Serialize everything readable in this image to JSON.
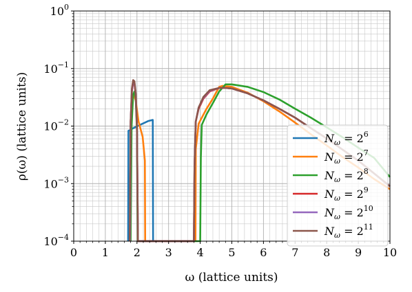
{
  "chart_data": {
    "type": "line",
    "title": "",
    "xlabel": "ω (lattice units)",
    "ylabel": "ρ(ω) (lattice units)",
    "xlim": [
      0,
      10
    ],
    "ylim": [
      0.0001,
      1
    ],
    "yscale": "log",
    "grid": true,
    "legend_position": "lower-right",
    "x_ticks": [
      {
        "value": 0,
        "label": "0"
      },
      {
        "value": 1,
        "label": "1"
      },
      {
        "value": 2,
        "label": "2"
      },
      {
        "value": 3,
        "label": "3"
      },
      {
        "value": 4,
        "label": "4"
      },
      {
        "value": 5,
        "label": "5"
      },
      {
        "value": 6,
        "label": "6"
      },
      {
        "value": 7,
        "label": "7"
      },
      {
        "value": 8,
        "label": "8"
      },
      {
        "value": 9,
        "label": "9"
      },
      {
        "value": 10,
        "label": "10"
      }
    ],
    "y_ticks": [
      {
        "value": 0.0001,
        "base": "10",
        "exp": "−4"
      },
      {
        "value": 0.001,
        "base": "10",
        "exp": "−3"
      },
      {
        "value": 0.01,
        "base": "10",
        "exp": "−2"
      },
      {
        "value": 0.1,
        "base": "10",
        "exp": "−1"
      },
      {
        "value": 1,
        "base": "10",
        "exp": "0"
      }
    ],
    "series": [
      {
        "name_base": "N",
        "name_sub": "ω",
        "name_rhs": " = 2",
        "name_exp": "6",
        "color": "#1f77b4",
        "points": [
          [
            1.72,
            0.0001
          ],
          [
            1.73,
            0.0083
          ],
          [
            1.78,
            0.0085
          ],
          [
            1.85,
            0.009
          ],
          [
            2.1,
            0.0105
          ],
          [
            2.35,
            0.0122
          ],
          [
            2.5,
            0.0128
          ],
          [
            2.51,
            0.0001
          ]
        ]
      },
      {
        "name_base": "N",
        "name_sub": "ω",
        "name_rhs": " = 2",
        "name_exp": "7",
        "color": "#ff7f0e",
        "points": [
          [
            1.78,
            0.0001
          ],
          [
            1.8,
            0.008
          ],
          [
            1.85,
            0.03
          ],
          [
            1.9,
            0.035
          ],
          [
            1.96,
            0.028
          ],
          [
            2.05,
            0.012
          ],
          [
            2.18,
            0.0065
          ],
          [
            2.25,
            0.0025
          ],
          [
            2.26,
            0.0001
          ],
          [
            3.85,
            0.0001
          ],
          [
            3.86,
            0.004
          ],
          [
            3.95,
            0.011
          ],
          [
            4.2,
            0.02
          ],
          [
            4.4,
            0.03
          ],
          [
            4.6,
            0.048
          ],
          [
            4.7,
            0.05
          ],
          [
            5.0,
            0.048
          ],
          [
            5.5,
            0.038
          ],
          [
            6.0,
            0.027
          ],
          [
            6.5,
            0.018
          ],
          [
            7.0,
            0.0115
          ],
          [
            7.5,
            0.0072
          ],
          [
            8.0,
            0.0046
          ],
          [
            8.5,
            0.0029
          ],
          [
            9.0,
            0.0019
          ],
          [
            9.5,
            0.0012
          ],
          [
            10.0,
            0.0008
          ]
        ]
      },
      {
        "name_base": "N",
        "name_sub": "ω",
        "name_rhs": " = 2",
        "name_exp": "8",
        "color": "#2ca02c",
        "points": [
          [
            1.8,
            0.0001
          ],
          [
            1.83,
            0.01
          ],
          [
            1.88,
            0.035
          ],
          [
            1.92,
            0.04
          ],
          [
            1.96,
            0.03
          ],
          [
            2.0,
            0.008
          ],
          [
            2.02,
            0.0001
          ],
          [
            4.0,
            0.0001
          ],
          [
            4.02,
            0.0028
          ],
          [
            4.05,
            0.0105
          ],
          [
            4.2,
            0.016
          ],
          [
            4.4,
            0.025
          ],
          [
            4.6,
            0.04
          ],
          [
            4.8,
            0.053
          ],
          [
            5.0,
            0.053
          ],
          [
            5.5,
            0.048
          ],
          [
            6.0,
            0.039
          ],
          [
            6.5,
            0.029
          ],
          [
            7.0,
            0.02
          ],
          [
            7.5,
            0.014
          ],
          [
            8.0,
            0.0095
          ],
          [
            8.5,
            0.0064
          ],
          [
            9.0,
            0.0042
          ],
          [
            9.5,
            0.0028
          ],
          [
            10.0,
            0.0013
          ]
        ]
      },
      {
        "name_base": "N",
        "name_sub": "ω",
        "name_rhs": " = 2",
        "name_exp": "9",
        "color": "#d62728",
        "points": [
          [
            1.78,
            0.0001
          ],
          [
            1.8,
            0.012
          ],
          [
            1.84,
            0.04
          ],
          [
            1.88,
            0.058
          ],
          [
            1.92,
            0.055
          ],
          [
            1.96,
            0.035
          ],
          [
            2.0,
            0.01
          ],
          [
            2.03,
            0.0001
          ],
          [
            3.8,
            0.0001
          ],
          [
            3.82,
            0.002
          ],
          [
            3.86,
            0.012
          ],
          [
            3.95,
            0.02
          ],
          [
            4.1,
            0.03
          ],
          [
            4.3,
            0.04
          ],
          [
            4.6,
            0.046
          ],
          [
            4.8,
            0.046
          ],
          [
            5.0,
            0.045
          ],
          [
            5.5,
            0.037
          ],
          [
            6.0,
            0.028
          ],
          [
            6.5,
            0.02
          ],
          [
            7.0,
            0.014
          ],
          [
            7.5,
            0.0092
          ],
          [
            8.0,
            0.0061
          ],
          [
            8.5,
            0.0039
          ],
          [
            9.0,
            0.0025
          ],
          [
            9.5,
            0.0015
          ],
          [
            10.0,
            0.0009
          ]
        ]
      },
      {
        "name_base": "N",
        "name_sub": "ω",
        "name_rhs": " = 2",
        "name_exp": "10",
        "color": "#9467bd",
        "points": [
          [
            1.78,
            0.0001
          ],
          [
            1.8,
            0.012
          ],
          [
            1.84,
            0.042
          ],
          [
            1.88,
            0.06
          ],
          [
            1.92,
            0.057
          ],
          [
            1.96,
            0.036
          ],
          [
            2.0,
            0.01
          ],
          [
            2.03,
            0.0001
          ],
          [
            3.8,
            0.0001
          ],
          [
            3.82,
            0.002
          ],
          [
            3.86,
            0.012
          ],
          [
            3.95,
            0.021
          ],
          [
            4.1,
            0.031
          ],
          [
            4.3,
            0.041
          ],
          [
            4.6,
            0.046
          ],
          [
            4.8,
            0.046
          ],
          [
            5.0,
            0.045
          ],
          [
            5.5,
            0.037
          ],
          [
            6.0,
            0.028
          ],
          [
            6.5,
            0.02
          ],
          [
            7.0,
            0.014
          ],
          [
            7.5,
            0.0092
          ],
          [
            8.0,
            0.0061
          ],
          [
            8.5,
            0.0039
          ],
          [
            9.0,
            0.0025
          ],
          [
            9.5,
            0.0015
          ],
          [
            10.0,
            0.0009
          ]
        ]
      },
      {
        "name_base": "N",
        "name_sub": "ω",
        "name_rhs": " = 2",
        "name_exp": "11",
        "color": "#8c564b",
        "points": [
          [
            1.77,
            0.0001
          ],
          [
            1.8,
            0.012
          ],
          [
            1.84,
            0.045
          ],
          [
            1.88,
            0.063
          ],
          [
            1.92,
            0.06
          ],
          [
            1.96,
            0.037
          ],
          [
            2.0,
            0.01
          ],
          [
            2.03,
            0.0001
          ],
          [
            3.8,
            0.0001
          ],
          [
            3.82,
            0.002
          ],
          [
            3.86,
            0.012
          ],
          [
            3.95,
            0.021
          ],
          [
            4.1,
            0.032
          ],
          [
            4.3,
            0.042
          ],
          [
            4.6,
            0.046
          ],
          [
            4.8,
            0.046
          ],
          [
            5.0,
            0.045
          ],
          [
            5.5,
            0.037
          ],
          [
            6.0,
            0.028
          ],
          [
            6.5,
            0.02
          ],
          [
            7.0,
            0.014
          ],
          [
            7.5,
            0.0092
          ],
          [
            8.0,
            0.0061
          ],
          [
            8.5,
            0.0039
          ],
          [
            9.0,
            0.0025
          ],
          [
            9.5,
            0.0015
          ],
          [
            10.0,
            0.0009
          ]
        ]
      }
    ]
  }
}
